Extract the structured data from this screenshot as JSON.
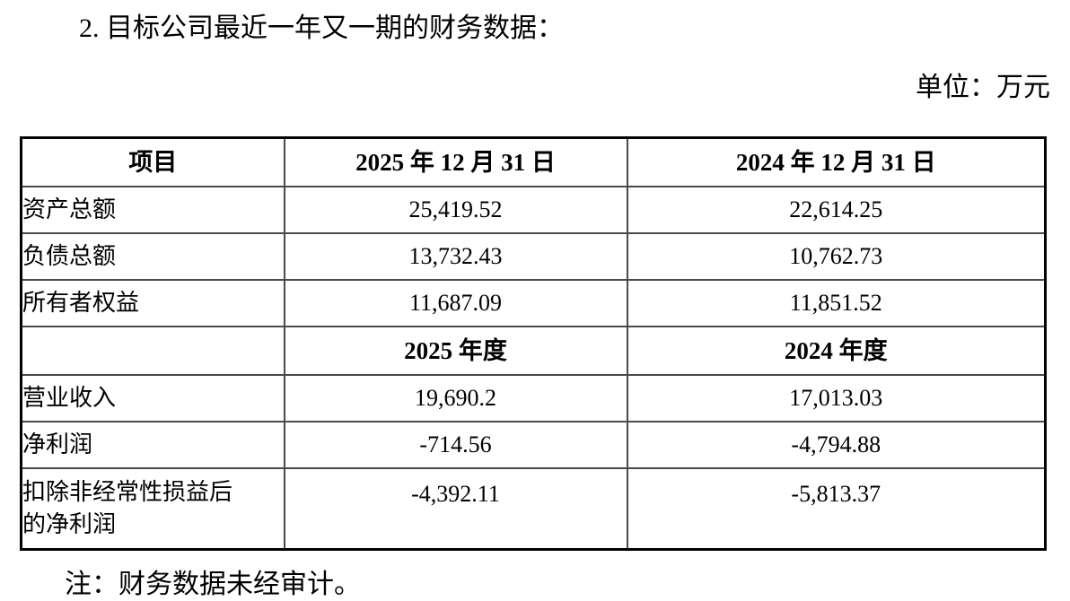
{
  "page": {
    "heading": "2. 目标公司最近一年又一期的财务数据：",
    "unit_label": "单位：万元",
    "note": "注：财务数据未经审计。"
  },
  "table": {
    "header": {
      "item": "项目",
      "col_2025": "2025 年 12 月 31 日",
      "col_2024": "2024 年 12 月 31 日"
    },
    "balance_rows": [
      {
        "label": "资产总额",
        "v2025": "25,419.52",
        "v2024": "22,614.25"
      },
      {
        "label": "负债总额",
        "v2025": "13,732.43",
        "v2024": "10,762.73"
      },
      {
        "label": "所有者权益",
        "v2025": "11,687.09",
        "v2024": "11,851.52"
      }
    ],
    "period_header": {
      "item": "",
      "col_2025": "2025 年度",
      "col_2024": "2024 年度"
    },
    "income_rows": [
      {
        "label": "营业收入",
        "v2025": "19,690.2",
        "v2024": "17,013.03"
      },
      {
        "label": "净利润",
        "v2025": "-714.56",
        "v2024": "-4,794.88"
      },
      {
        "label": "扣除非经常性损益后\n的净利润",
        "v2025": "-4,392.11",
        "v2024": "-5,813.37"
      }
    ]
  }
}
